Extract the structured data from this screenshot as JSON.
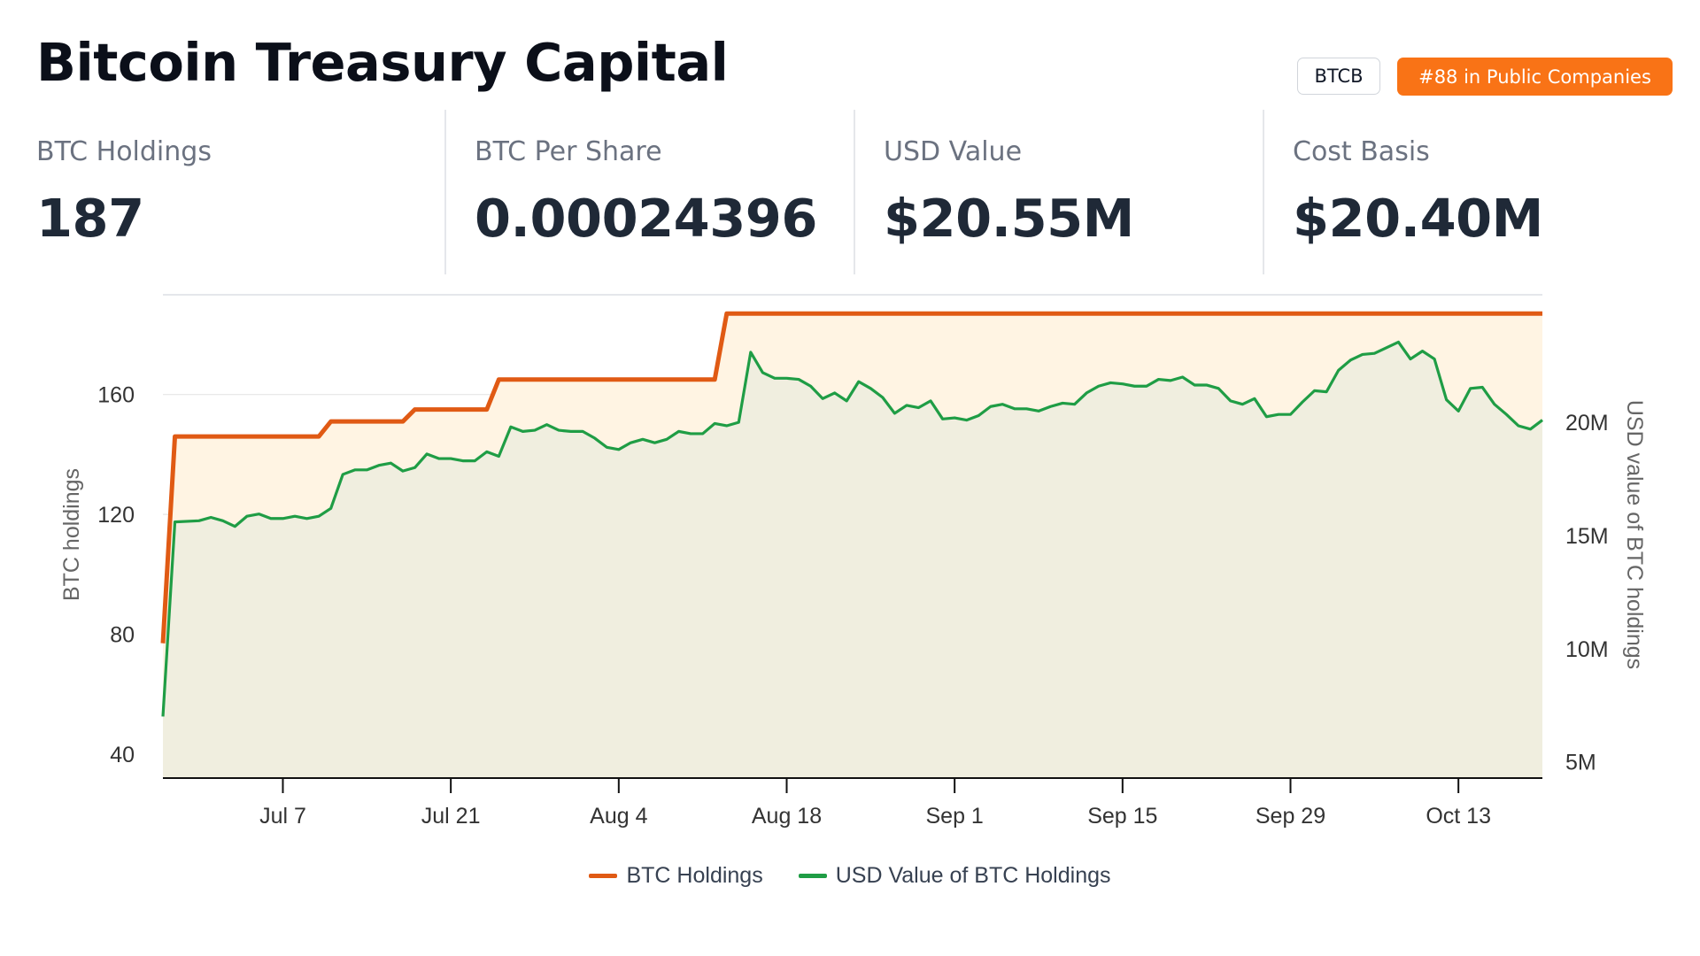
{
  "header": {
    "title": "Bitcoin Treasury Capital",
    "ticker": "BTCB",
    "rank": "#88 in Public Companies"
  },
  "stats": [
    {
      "label": "BTC Holdings",
      "value": "187"
    },
    {
      "label": "BTC Per Share",
      "value": "0.00024396"
    },
    {
      "label": "USD Value",
      "value": "$20.55M"
    },
    {
      "label": "Cost Basis",
      "value": "$20.40M"
    }
  ],
  "colors": {
    "holdings_line": "#e05a14",
    "holdings_fill": "#fff4e3",
    "usd_line": "#1f9d45",
    "usd_fill": "#f0eedf",
    "grid": "#e6e6e6",
    "badge": "#f97316"
  },
  "chart_data": {
    "type": "line",
    "ylabel": "BTC holdings",
    "y2label": "USD value of BTC holdings",
    "ylim": [
      32,
      193
    ],
    "y2lim": [
      4279000,
      25600000
    ],
    "yticks": [
      40,
      80,
      120,
      160
    ],
    "y2ticks": [
      5000000,
      10000000,
      15000000,
      20000000
    ],
    "y2tick_labels": [
      "5M",
      "10M",
      "15M",
      "20M"
    ],
    "xlim": [
      "2025-06-27",
      "2025-10-20"
    ],
    "xticks": [
      "2025-07-07",
      "2025-07-21",
      "2025-08-04",
      "2025-08-18",
      "2025-09-01",
      "2025-09-15",
      "2025-09-29",
      "2025-10-13"
    ],
    "xtick_labels": [
      "Jul 7",
      "Jul 21",
      "Aug 4",
      "Aug 18",
      "Sep 1",
      "Sep 15",
      "Sep 29",
      "Oct 13"
    ],
    "grid": true,
    "legend_position": "bottom-center",
    "series": [
      {
        "name": "BTC Holdings",
        "axis": "left",
        "step": true,
        "points": [
          [
            "2025-06-27",
            77
          ],
          [
            "2025-06-28",
            146
          ],
          [
            "2025-07-10",
            146
          ],
          [
            "2025-07-11",
            151
          ],
          [
            "2025-07-17",
            151
          ],
          [
            "2025-07-18",
            155
          ],
          [
            "2025-07-24",
            155
          ],
          [
            "2025-07-25",
            165
          ],
          [
            "2025-08-12",
            165
          ],
          [
            "2025-08-13",
            187
          ],
          [
            "2025-10-20",
            187
          ]
        ]
      },
      {
        "name": "USD Value of BTC Holdings",
        "axis": "right",
        "points": [
          [
            "2025-06-27",
            7000000
          ],
          [
            "2025-06-28",
            15600000
          ],
          [
            "2025-06-30",
            15650000
          ],
          [
            "2025-07-01",
            15800000
          ],
          [
            "2025-07-02",
            15650000
          ],
          [
            "2025-07-03",
            15400000
          ],
          [
            "2025-07-04",
            15850000
          ],
          [
            "2025-07-05",
            15950000
          ],
          [
            "2025-07-06",
            15750000
          ],
          [
            "2025-07-07",
            15750000
          ],
          [
            "2025-07-08",
            15850000
          ],
          [
            "2025-07-09",
            15750000
          ],
          [
            "2025-07-10",
            15850000
          ],
          [
            "2025-07-11",
            16200000
          ],
          [
            "2025-07-12",
            17700000
          ],
          [
            "2025-07-13",
            17900000
          ],
          [
            "2025-07-14",
            17900000
          ],
          [
            "2025-07-15",
            18100000
          ],
          [
            "2025-07-16",
            18200000
          ],
          [
            "2025-07-17",
            17850000
          ],
          [
            "2025-07-18",
            18000000
          ],
          [
            "2025-07-19",
            18600000
          ],
          [
            "2025-07-20",
            18400000
          ],
          [
            "2025-07-21",
            18400000
          ],
          [
            "2025-07-22",
            18300000
          ],
          [
            "2025-07-23",
            18300000
          ],
          [
            "2025-07-24",
            18700000
          ],
          [
            "2025-07-25",
            18500000
          ],
          [
            "2025-07-26",
            19800000
          ],
          [
            "2025-07-27",
            19600000
          ],
          [
            "2025-07-28",
            19650000
          ],
          [
            "2025-07-29",
            19900000
          ],
          [
            "2025-07-30",
            19650000
          ],
          [
            "2025-07-31",
            19600000
          ],
          [
            "2025-08-01",
            19600000
          ],
          [
            "2025-08-02",
            19300000
          ],
          [
            "2025-08-03",
            18900000
          ],
          [
            "2025-08-04",
            18800000
          ],
          [
            "2025-08-05",
            19100000
          ],
          [
            "2025-08-06",
            19250000
          ],
          [
            "2025-08-07",
            19100000
          ],
          [
            "2025-08-08",
            19250000
          ],
          [
            "2025-08-09",
            19600000
          ],
          [
            "2025-08-10",
            19500000
          ],
          [
            "2025-08-11",
            19500000
          ],
          [
            "2025-08-12",
            19950000
          ],
          [
            "2025-08-13",
            19850000
          ],
          [
            "2025-08-14",
            20000000
          ],
          [
            "2025-08-15",
            23100000
          ],
          [
            "2025-08-16",
            22200000
          ],
          [
            "2025-08-17",
            21950000
          ],
          [
            "2025-08-18",
            21950000
          ],
          [
            "2025-08-19",
            21900000
          ],
          [
            "2025-08-20",
            21600000
          ],
          [
            "2025-08-21",
            21050000
          ],
          [
            "2025-08-22",
            21300000
          ],
          [
            "2025-08-23",
            20950000
          ],
          [
            "2025-08-24",
            21800000
          ],
          [
            "2025-08-25",
            21500000
          ],
          [
            "2025-08-26",
            21100000
          ],
          [
            "2025-08-27",
            20400000
          ],
          [
            "2025-08-28",
            20750000
          ],
          [
            "2025-08-29",
            20650000
          ],
          [
            "2025-08-30",
            20950000
          ],
          [
            "2025-08-31",
            20150000
          ],
          [
            "2025-09-01",
            20200000
          ],
          [
            "2025-09-02",
            20100000
          ],
          [
            "2025-09-03",
            20300000
          ],
          [
            "2025-09-04",
            20700000
          ],
          [
            "2025-09-05",
            20800000
          ],
          [
            "2025-09-06",
            20600000
          ],
          [
            "2025-09-07",
            20600000
          ],
          [
            "2025-09-08",
            20500000
          ],
          [
            "2025-09-09",
            20700000
          ],
          [
            "2025-09-10",
            20850000
          ],
          [
            "2025-09-11",
            20800000
          ],
          [
            "2025-09-12",
            21300000
          ],
          [
            "2025-09-13",
            21600000
          ],
          [
            "2025-09-14",
            21750000
          ],
          [
            "2025-09-15",
            21700000
          ],
          [
            "2025-09-16",
            21600000
          ],
          [
            "2025-09-17",
            21600000
          ],
          [
            "2025-09-18",
            21900000
          ],
          [
            "2025-09-19",
            21850000
          ],
          [
            "2025-09-20",
            22000000
          ],
          [
            "2025-09-21",
            21650000
          ],
          [
            "2025-09-22",
            21650000
          ],
          [
            "2025-09-23",
            21500000
          ],
          [
            "2025-09-24",
            20950000
          ],
          [
            "2025-09-25",
            20800000
          ],
          [
            "2025-09-26",
            21050000
          ],
          [
            "2025-09-27",
            20250000
          ],
          [
            "2025-09-28",
            20350000
          ],
          [
            "2025-09-29",
            20350000
          ],
          [
            "2025-09-30",
            20900000
          ],
          [
            "2025-10-01",
            21400000
          ],
          [
            "2025-10-02",
            21350000
          ],
          [
            "2025-10-03",
            22300000
          ],
          [
            "2025-10-04",
            22750000
          ],
          [
            "2025-10-05",
            23000000
          ],
          [
            "2025-10-06",
            23050000
          ],
          [
            "2025-10-07",
            23300000
          ],
          [
            "2025-10-08",
            23550000
          ],
          [
            "2025-10-09",
            22800000
          ],
          [
            "2025-10-10",
            23150000
          ],
          [
            "2025-10-11",
            22800000
          ],
          [
            "2025-10-12",
            21000000
          ],
          [
            "2025-10-13",
            20500000
          ],
          [
            "2025-10-14",
            21500000
          ],
          [
            "2025-10-15",
            21550000
          ],
          [
            "2025-10-16",
            20800000
          ],
          [
            "2025-10-17",
            20350000
          ],
          [
            "2025-10-18",
            19850000
          ],
          [
            "2025-10-19",
            19700000
          ],
          [
            "2025-10-20",
            20100000
          ]
        ]
      }
    ]
  }
}
